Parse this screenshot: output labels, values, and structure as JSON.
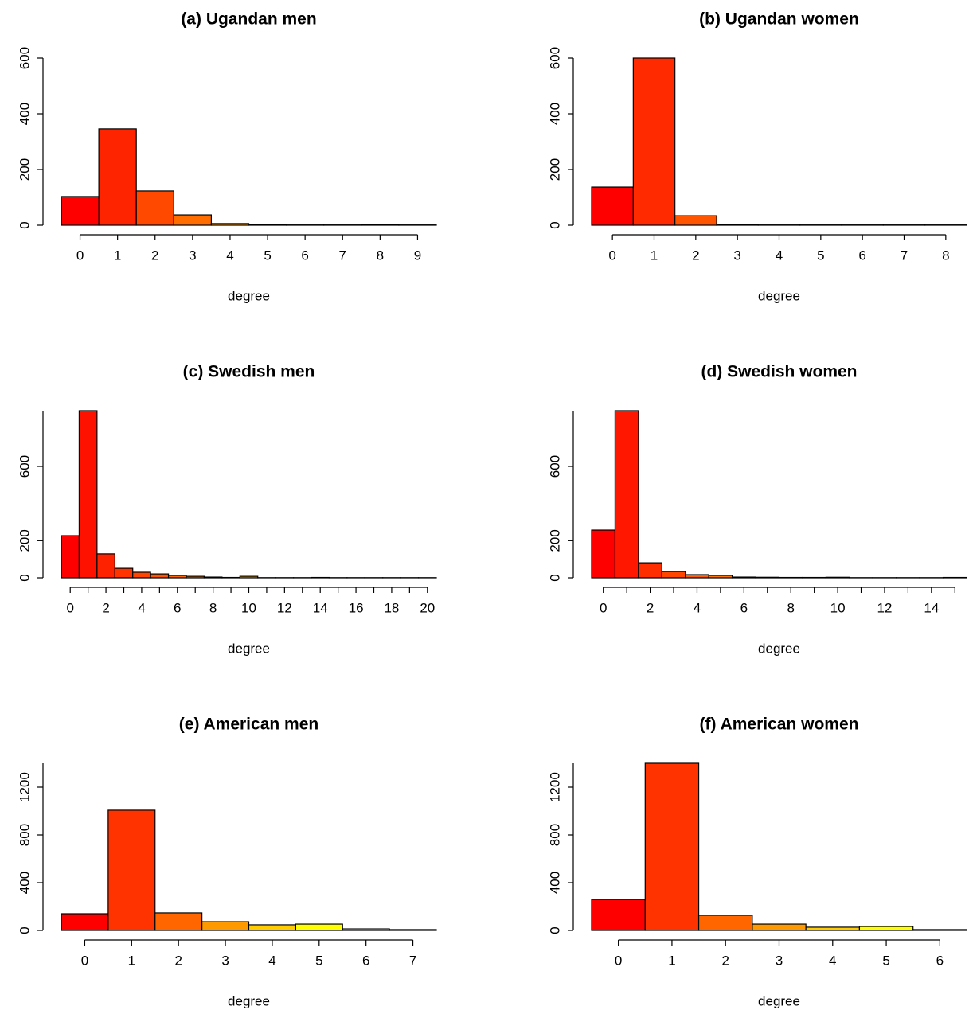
{
  "chart_data": [
    {
      "type": "bar",
      "title": "(a) Ugandan men",
      "xlabel": "degree",
      "categories": [
        "0",
        "1",
        "2",
        "3",
        "4",
        "5",
        "6",
        "7",
        "8",
        "9"
      ],
      "values": [
        103,
        346,
        123,
        37,
        6,
        3,
        1,
        1,
        2,
        1
      ],
      "colors": [
        "#FF0000",
        "#FF2400",
        "#FF4900",
        "#FF6D00",
        "#FF9200",
        "#FFB600",
        "#FFDB00",
        "#FFFF00",
        "#FFFF40",
        "#FFFFBF"
      ],
      "ylim": [
        0,
        600
      ],
      "yticks": [
        0,
        200,
        400,
        600
      ]
    },
    {
      "type": "bar",
      "title": "(b) Ugandan women",
      "xlabel": "degree",
      "categories": [
        "0",
        "1",
        "2",
        "3",
        "4",
        "5",
        "6",
        "7",
        "8"
      ],
      "values": [
        137,
        600,
        34,
        2,
        1,
        1,
        1,
        1,
        1
      ],
      "colors": [
        "#FF0000",
        "#FF2A00",
        "#FF5500",
        "#FF8000",
        "#FFAA00",
        "#FFD500",
        "#FFFF00",
        "#FFFF40",
        "#FFFFBF"
      ],
      "ylim": [
        0,
        600
      ],
      "yticks": [
        0,
        200,
        400,
        600
      ]
    },
    {
      "type": "bar",
      "title": "(c) Swedish men",
      "xlabel": "degree",
      "categories": [
        "0",
        null,
        "2",
        null,
        "4",
        null,
        "6",
        null,
        "8",
        null,
        "10",
        null,
        "12",
        null,
        "14",
        null,
        "16",
        null,
        "18",
        null,
        "20"
      ],
      "values": [
        227,
        900,
        129,
        51,
        30,
        21,
        13,
        8,
        4,
        2,
        8,
        1,
        1,
        1,
        2,
        1,
        1,
        1,
        1,
        1,
        1
      ],
      "colors": [
        "#FF0000",
        "#FF1100",
        "#FF2200",
        "#FF3300",
        "#FF4400",
        "#FF5500",
        "#FF6600",
        "#FF7700",
        "#FF8800",
        "#FF9900",
        "#FFAA00",
        "#FFBB00",
        "#FFCC00",
        "#FFDD00",
        "#FFEE00",
        "#FFFF00",
        "#FFFF1A",
        "#FFFF4D",
        "#FFFF80",
        "#FFFFB3",
        "#FFFFE6"
      ],
      "ylim": [
        0,
        900
      ],
      "yticks": [
        0,
        200,
        600
      ]
    },
    {
      "type": "bar",
      "title": "(d) Swedish women",
      "xlabel": "degree",
      "categories": [
        "0",
        null,
        "2",
        null,
        "4",
        null,
        "6",
        null,
        "8",
        null,
        "10",
        null,
        "12",
        null,
        "14",
        null
      ],
      "values": [
        257,
        900,
        81,
        34,
        17,
        13,
        4,
        3,
        2,
        2,
        3,
        1,
        1,
        1,
        1,
        2
      ],
      "colors": [
        "#FF0000",
        "#FF1700",
        "#FF2E00",
        "#FF4600",
        "#FF5D00",
        "#FF7400",
        "#FF8B00",
        "#FFA200",
        "#FFB900",
        "#FFD100",
        "#FFE800",
        "#FFFF00",
        "#FFFF20",
        "#FFFF60",
        "#FFFF9F",
        "#FFFFDF"
      ],
      "ylim": [
        0,
        900
      ],
      "yticks": [
        0,
        200,
        600
      ]
    },
    {
      "type": "bar",
      "title": "(e) American men",
      "xlabel": "degree",
      "categories": [
        "0",
        "1",
        "2",
        "3",
        "4",
        "5",
        "6",
        "7"
      ],
      "values": [
        140,
        1007,
        147,
        73,
        47,
        53,
        13,
        7
      ],
      "colors": [
        "#FF0000",
        "#FF3300",
        "#FF6600",
        "#FF9900",
        "#FFCC00",
        "#FFFF00",
        "#FFFF40",
        "#FFFFBF"
      ],
      "ylim": [
        0,
        1400
      ],
      "yticks": [
        0,
        400,
        800,
        1200
      ]
    },
    {
      "type": "bar",
      "title": "(f) American women",
      "xlabel": "degree",
      "categories": [
        "0",
        "1",
        "2",
        "3",
        "4",
        "5",
        "6"
      ],
      "values": [
        260,
        1400,
        127,
        53,
        27,
        33,
        7
      ],
      "colors": [
        "#FF0000",
        "#FF3300",
        "#FF6600",
        "#FF9900",
        "#FFCC00",
        "#FFFF00",
        "#FFFF80"
      ],
      "ylim": [
        0,
        1400
      ],
      "yticks": [
        0,
        400,
        800,
        1200
      ]
    }
  ]
}
